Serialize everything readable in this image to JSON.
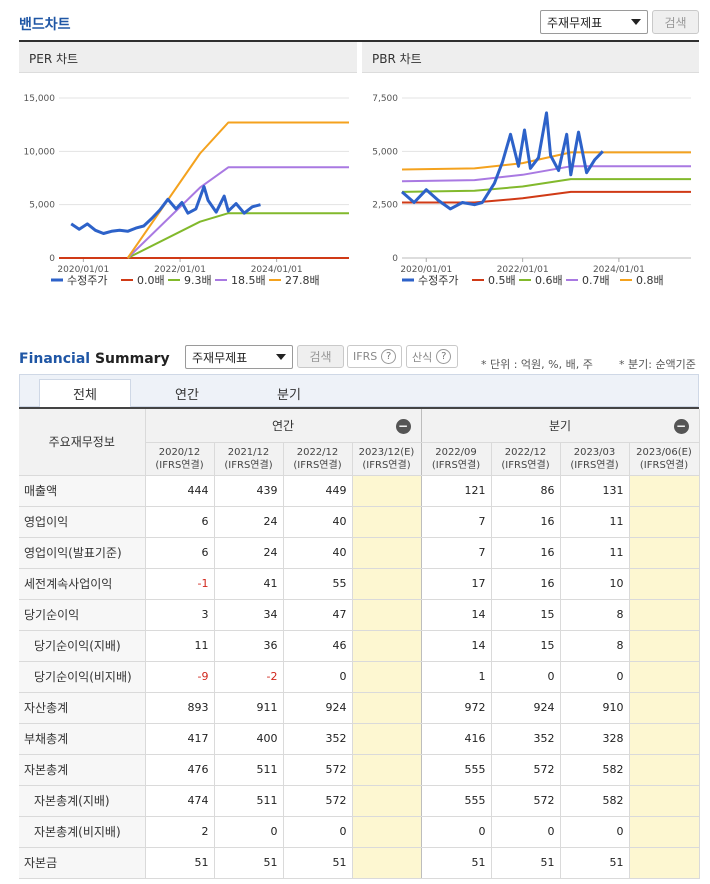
{
  "band": {
    "title": "밴드차트",
    "select_value": "주재무제표",
    "search_label": "검색"
  },
  "charts": [
    {
      "title": "PER 차트",
      "y_ticks": [
        "15,000",
        "10,000",
        "5,000",
        "0"
      ],
      "x_ticks": [
        "2020/01/01",
        "2022/01/01",
        "2024/01/01"
      ],
      "legend": [
        "수정주가",
        "0.0배",
        "9.3배",
        "18.5배",
        "27.8배"
      ],
      "colors": [
        "#2d62c9",
        "#d03a16",
        "#82b92c",
        "#a979e2",
        "#f4a21e"
      ]
    },
    {
      "title": "PBR 차트",
      "y_ticks": [
        "7,500",
        "5,000",
        "2,500",
        "0"
      ],
      "x_ticks": [
        "2020/01/01",
        "2022/01/01",
        "2024/01/01"
      ],
      "legend": [
        "수정주가",
        "0.5배",
        "0.6배",
        "0.7배",
        "0.8배"
      ],
      "colors": [
        "#2d62c9",
        "#d03a16",
        "#82b92c",
        "#a979e2",
        "#f4a21e"
      ]
    }
  ],
  "chart_data": [
    {
      "type": "line",
      "ylim": [
        0,
        15000
      ],
      "xlim": [
        "2019/07/01",
        "2025/07/01"
      ],
      "series": [
        {
          "name": "수정주가",
          "x": [
            "2019/10/01",
            "2019/12/01",
            "2020/02/01",
            "2020/04/01",
            "2020/06/01",
            "2020/08/01",
            "2020/10/01",
            "2020/12/01",
            "2021/02/01",
            "2021/04/01",
            "2021/06/01",
            "2021/08/01",
            "2021/10/01",
            "2021/12/01",
            "2022/01/15",
            "2022/03/01",
            "2022/05/01",
            "2022/07/01",
            "2022/08/01",
            "2022/10/01",
            "2022/12/01",
            "2023/01/01",
            "2023/03/01",
            "2023/05/01",
            "2023/07/01",
            "2023/09/01"
          ],
          "y": [
            3200,
            2700,
            3200,
            2600,
            2300,
            2500,
            2600,
            2500,
            2800,
            3000,
            3700,
            4500,
            5500,
            4600,
            5200,
            4200,
            4600,
            6700,
            5400,
            4300,
            5800,
            4400,
            5100,
            4200,
            4800,
            5000
          ]
        },
        {
          "name": "0.0배",
          "x": [
            "2019/07/01",
            "2025/07/01"
          ],
          "y": [
            0,
            0
          ]
        },
        {
          "name": "9.3배",
          "x": [
            "2020/12/01",
            "2022/06/01",
            "2023/01/01",
            "2025/07/01"
          ],
          "y": [
            0,
            3400,
            4200,
            4200
          ]
        },
        {
          "name": "18.5배",
          "x": [
            "2020/12/01",
            "2022/06/01",
            "2023/01/01",
            "2025/07/01"
          ],
          "y": [
            0,
            6600,
            8500,
            8500
          ]
        },
        {
          "name": "27.8배",
          "x": [
            "2020/12/01",
            "2022/06/01",
            "2023/01/01",
            "2025/07/01"
          ],
          "y": [
            0,
            9800,
            12700,
            12700
          ]
        }
      ]
    },
    {
      "type": "line",
      "ylim": [
        0,
        7500
      ],
      "xlim": [
        "2019/07/01",
        "2025/07/01"
      ],
      "series": [
        {
          "name": "수정주가",
          "x": [
            "2019/07/01",
            "2019/10/01",
            "2020/01/01",
            "2020/04/01",
            "2020/07/01",
            "2020/10/01",
            "2021/01/01",
            "2021/03/01",
            "2021/06/01",
            "2021/08/01",
            "2021/10/01",
            "2021/12/01",
            "2022/01/15",
            "2022/03/01",
            "2022/05/01",
            "2022/07/01",
            "2022/08/01",
            "2022/10/01",
            "2022/12/01",
            "2023/01/01",
            "2023/03/01",
            "2023/05/01",
            "2023/07/01",
            "2023/09/01"
          ],
          "y": [
            3100,
            2600,
            3200,
            2700,
            2300,
            2600,
            2500,
            2600,
            3500,
            4500,
            5800,
            4300,
            6000,
            4200,
            4700,
            6800,
            4800,
            4100,
            5800,
            3900,
            5900,
            4000,
            4600,
            5000
          ]
        },
        {
          "name": "0.5배",
          "x": [
            "2019/07/01",
            "2021/01/01",
            "2022/01/01",
            "2023/01/01",
            "2025/07/01"
          ],
          "y": [
            2600,
            2600,
            2800,
            3100,
            3100
          ]
        },
        {
          "name": "0.6배",
          "x": [
            "2019/07/01",
            "2021/01/01",
            "2022/01/01",
            "2023/01/01",
            "2025/07/01"
          ],
          "y": [
            3100,
            3150,
            3350,
            3700,
            3700
          ]
        },
        {
          "name": "0.7배",
          "x": [
            "2019/07/01",
            "2021/01/01",
            "2022/01/01",
            "2023/01/01",
            "2025/07/01"
          ],
          "y": [
            3600,
            3650,
            3900,
            4300,
            4300
          ]
        },
        {
          "name": "0.8배",
          "x": [
            "2019/07/01",
            "2021/01/01",
            "2022/01/01",
            "2023/01/01",
            "2025/07/01"
          ],
          "y": [
            4150,
            4200,
            4450,
            4950,
            4950
          ]
        }
      ]
    }
  ],
  "fs": {
    "title_a": "Financial",
    "title_b": " Summary",
    "select_value": "주재무제표",
    "search_label": "검색",
    "ifrs_label": "IFRS",
    "formula_label": "산식",
    "q": "?",
    "unit_note": "* 단위 : 억원, %, 배, 주",
    "quarter_note": "* 분기: 순액기준",
    "tabs": [
      "전체",
      "연간",
      "분기"
    ],
    "row_header": "주요재무정보",
    "group_annual": "연간",
    "group_quarter": "분기",
    "minus": "−",
    "periods": [
      {
        "d": "2020/12",
        "s": "(IFRS연결)"
      },
      {
        "d": "2021/12",
        "s": "(IFRS연결)"
      },
      {
        "d": "2022/12",
        "s": "(IFRS연결)"
      },
      {
        "d": "2023/12(E)",
        "s": "(IFRS연결)"
      },
      {
        "d": "2022/09",
        "s": "(IFRS연결)"
      },
      {
        "d": "2022/12",
        "s": "(IFRS연결)"
      },
      {
        "d": "2023/03",
        "s": "(IFRS연결)"
      },
      {
        "d": "2023/06(E)",
        "s": "(IFRS연결)"
      }
    ],
    "rows": [
      {
        "label": "매출액",
        "sub": false,
        "v": [
          "444",
          "439",
          "449",
          "",
          "121",
          "86",
          "131",
          ""
        ]
      },
      {
        "label": "영업이익",
        "sub": false,
        "v": [
          "6",
          "24",
          "40",
          "",
          "7",
          "16",
          "11",
          ""
        ]
      },
      {
        "label": "영업이익(발표기준)",
        "sub": false,
        "v": [
          "6",
          "24",
          "40",
          "",
          "7",
          "16",
          "11",
          ""
        ]
      },
      {
        "label": "세전계속사업이익",
        "sub": false,
        "v": [
          "-1",
          "41",
          "55",
          "",
          "17",
          "16",
          "10",
          ""
        ]
      },
      {
        "label": "당기순이익",
        "sub": false,
        "v": [
          "3",
          "34",
          "47",
          "",
          "14",
          "15",
          "8",
          ""
        ]
      },
      {
        "label": "당기순이익(지배)",
        "sub": true,
        "v": [
          "11",
          "36",
          "46",
          "",
          "14",
          "15",
          "8",
          ""
        ]
      },
      {
        "label": "당기순이익(비지배)",
        "sub": true,
        "v": [
          "-9",
          "-2",
          "0",
          "",
          "1",
          "0",
          "0",
          ""
        ]
      },
      {
        "label": "자산총계",
        "sub": false,
        "v": [
          "893",
          "911",
          "924",
          "",
          "972",
          "924",
          "910",
          ""
        ]
      },
      {
        "label": "부채총계",
        "sub": false,
        "v": [
          "417",
          "400",
          "352",
          "",
          "416",
          "352",
          "328",
          ""
        ]
      },
      {
        "label": "자본총계",
        "sub": false,
        "v": [
          "476",
          "511",
          "572",
          "",
          "555",
          "572",
          "582",
          ""
        ]
      },
      {
        "label": "자본총계(지배)",
        "sub": true,
        "v": [
          "474",
          "511",
          "572",
          "",
          "555",
          "572",
          "582",
          ""
        ]
      },
      {
        "label": "자본총계(비지배)",
        "sub": true,
        "v": [
          "2",
          "0",
          "0",
          "",
          "0",
          "0",
          "0",
          ""
        ]
      },
      {
        "label": "자본금",
        "sub": false,
        "v": [
          "51",
          "51",
          "51",
          "",
          "51",
          "51",
          "51",
          ""
        ]
      }
    ]
  }
}
